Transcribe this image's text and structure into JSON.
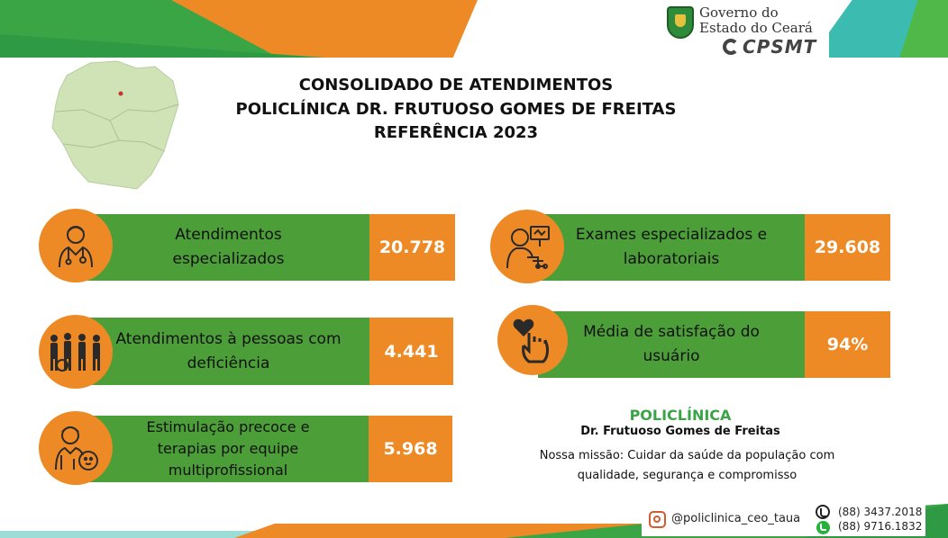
{
  "header": {
    "gov_line1": "Governo do",
    "gov_line2": "Estado do Ceará",
    "cpsmt": "CPSMT",
    "title_line1": "CONSOLIDADO DE ATENDIMENTOS",
    "title_line2": "POLICLÍNICA DR. FRUTUOSO GOMES DE FREITAS",
    "title_line3": "REFERÊNCIA 2023"
  },
  "stats": [
    {
      "label": "Atendimentos especializados",
      "value": "20.778",
      "icon": "doctor-icon"
    },
    {
      "label": "Atendimentos à pessoas com deficiência",
      "value": "4.441",
      "icon": "people-with-disabilities-icon"
    },
    {
      "label": "Estimulação precoce e terapias por equipe multiprofissional",
      "value": "5.968",
      "icon": "child-therapy-icon"
    },
    {
      "label": "Exames especializados e laboratoriais",
      "value": "29.608",
      "icon": "exam-monitor-icon"
    },
    {
      "label": "Média de satisfação do usuário",
      "value": "94%",
      "icon": "heart-hand-icon"
    }
  ],
  "info": {
    "title": "POLICLÍNICA",
    "subtitle": "Dr. Frutuoso Gomes de Freitas",
    "mission": "Nossa missão: Cuidar da saúde da população com qualidade, segurança e compromisso"
  },
  "contact": {
    "instagram": "@policlinica_ceo_taua",
    "phone": "(88) 3437.2018",
    "whatsapp": "(88) 9716.1832"
  },
  "colors": {
    "green": "#4c9e39",
    "orange": "#ee8a25",
    "policlinica_title": "#3aa545"
  }
}
